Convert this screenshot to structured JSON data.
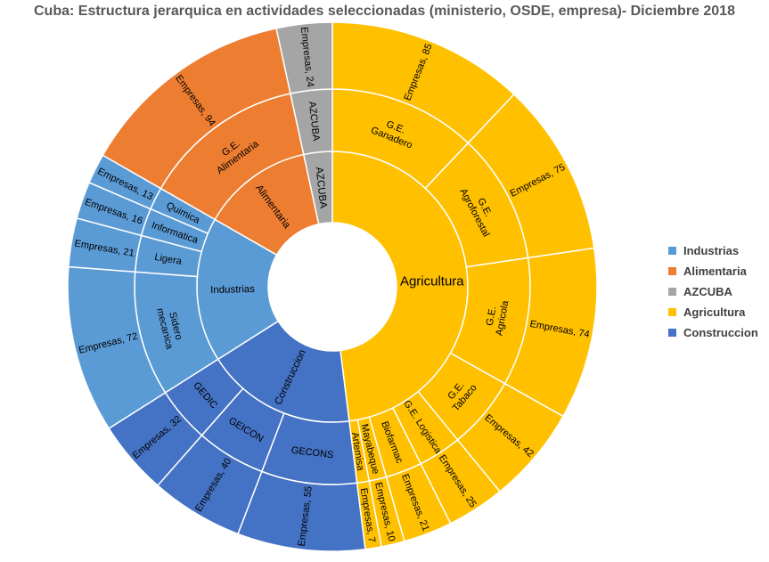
{
  "chart_data": {
    "type": "sunburst",
    "title": "Cuba: Estructura jerarquica en actividades seleccionadas (ministerio, OSDE, empresa)- Diciembre 2018",
    "colors": {
      "Agricultura": "#ffc000",
      "Construccion": "#4472c4",
      "Industrias": "#5b9bd5",
      "Alimentaria": "#ed7d31",
      "AZCUBA": "#a5a5a5"
    },
    "legend": [
      "Industrias",
      "Alimentaria",
      "AZCUBA",
      "Agricultura",
      "Construccion"
    ],
    "legend_position": "right",
    "ministries": [
      {
        "name": "Agricultura",
        "osdes": [
          {
            "name": "G.E. Ganadero",
            "companies_label": "Empresas, 85",
            "value": 85
          },
          {
            "name": "G.E. Agroforestal",
            "companies_label": "Empresas, 75",
            "value": 75
          },
          {
            "name": "G.E. Agricola",
            "companies_label": "Empresas, 74",
            "value": 74
          },
          {
            "name": "G.E. Tabaco",
            "companies_label": "Empresas, 42",
            "value": 42
          },
          {
            "name": "G.E. Logistica",
            "companies_label": "Empresas, 25",
            "value": 25
          },
          {
            "name": "Biofarmac",
            "companies_label": "Empresas, 21",
            "value": 21
          },
          {
            "name": "Mayabeque",
            "companies_label": "Empresas, 10",
            "value": 10
          },
          {
            "name": "Artemisa",
            "companies_label": "Empresas, 7",
            "value": 7
          }
        ]
      },
      {
        "name": "Construccion",
        "osdes": [
          {
            "name": "GECONS",
            "companies_label": "Empresas, 55",
            "value": 55
          },
          {
            "name": "GEICON",
            "companies_label": "Empresas, 40",
            "value": 40
          },
          {
            "name": "GEDIC",
            "companies_label": "Empresas, 32",
            "value": 32
          }
        ]
      },
      {
        "name": "Industrias",
        "osdes": [
          {
            "name": "Sidero mecanica",
            "companies_label": "Empresas, 72",
            "value": 72
          },
          {
            "name": "Ligera",
            "companies_label": "Empresas, 21",
            "value": 21
          },
          {
            "name": "Informatica",
            "companies_label": "Empresas, 16",
            "value": 16
          },
          {
            "name": "Quimica",
            "companies_label": "Empresas, 13",
            "value": 13
          }
        ]
      },
      {
        "name": "Alimentaria",
        "osdes": [
          {
            "name": "G.E. Alimentaria",
            "companies_label": "Empresas, 94",
            "value": 94
          }
        ]
      },
      {
        "name": "AZCUBA",
        "osdes": [
          {
            "name": "AZCUBA",
            "companies_label": "Empresas, 24",
            "value": 24
          }
        ]
      }
    ]
  }
}
